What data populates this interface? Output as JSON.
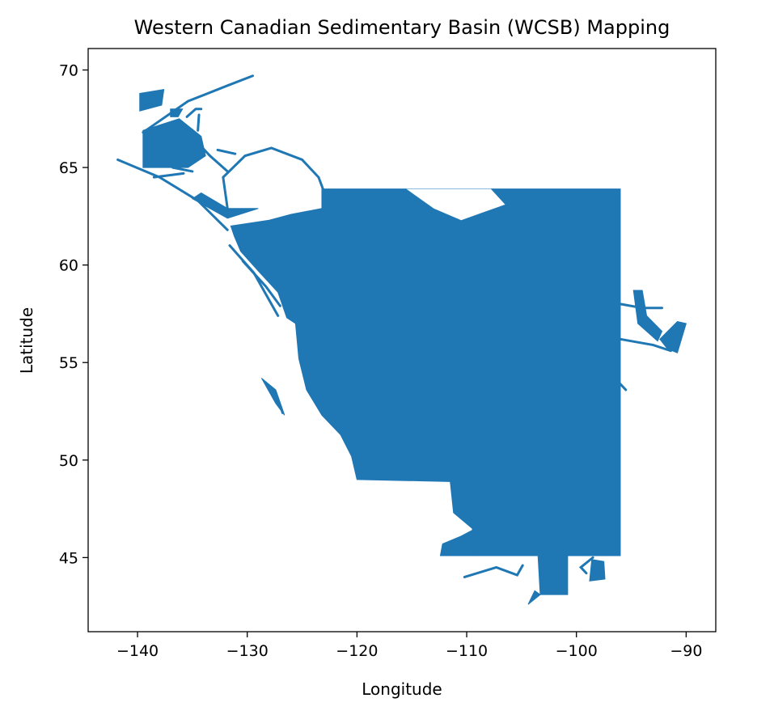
{
  "title": "Western Canadian Sedimentary Basin (WCSB) Mapping",
  "chart_data": {
    "type": "map",
    "title": "Western Canadian Sedimentary Basin (WCSB) Mapping",
    "xlabel": "Longitude",
    "ylabel": "Latitude",
    "xlim": [
      -144.5,
      -87.3
    ],
    "ylim": [
      41.2,
      71.1
    ],
    "xticks": [
      {
        "value": -140,
        "label": "−140"
      },
      {
        "value": -130,
        "label": "−130"
      },
      {
        "value": -120,
        "label": "−120"
      },
      {
        "value": -110,
        "label": "−110"
      },
      {
        "value": -100,
        "label": "−100"
      },
      {
        "value": -90,
        "label": "−90"
      }
    ],
    "yticks": [
      {
        "value": 45,
        "label": "45"
      },
      {
        "value": 50,
        "label": "50"
      },
      {
        "value": 55,
        "label": "55"
      },
      {
        "value": 60,
        "label": "60"
      },
      {
        "value": 65,
        "label": "65"
      },
      {
        "value": 70,
        "label": "70"
      }
    ],
    "grid": false,
    "fill_color": "#1f77b4"
  }
}
